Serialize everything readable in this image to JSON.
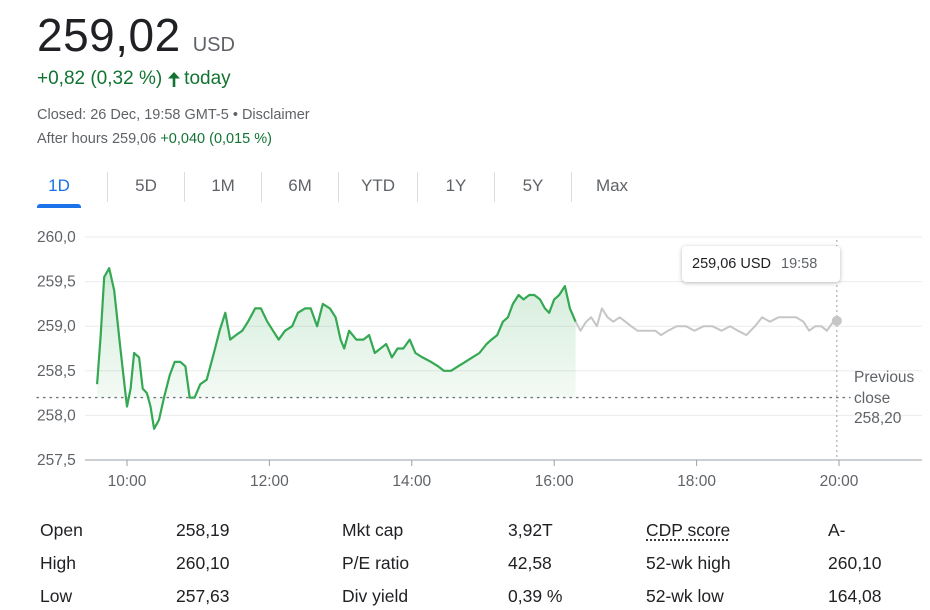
{
  "quote": {
    "price": "259,02",
    "currency": "USD",
    "change": "+0,82 (0,32 %)",
    "change_period": "today",
    "closed_text": "Closed: 26 Dec, 19:58 GMT-5 • Disclaimer",
    "after_hours_label": "After hours 259,06",
    "after_hours_change": "+0,040 (0,015 %)",
    "up_color": "#137333"
  },
  "tabs": [
    {
      "label": "1D",
      "active": true
    },
    {
      "label": "5D"
    },
    {
      "label": "6M",
      "hidden_note": ""
    },
    {
      "label": "1M"
    }
  ],
  "range_tabs": [
    "1D",
    "5D",
    "1M",
    "6M",
    "YTD",
    "1Y",
    "5Y",
    "Max"
  ],
  "tooltip": {
    "price": "259,06 USD",
    "time": "19:58"
  },
  "previous_close": {
    "line1": "Previous",
    "line2": "close",
    "value": "258,20"
  },
  "chart_data": {
    "type": "line",
    "y_ticks": [
      "260,0",
      "259,5",
      "259,0",
      "258,5",
      "258,0",
      "257,5"
    ],
    "x_ticks": [
      "10:00",
      "12:00",
      "14:00",
      "16:00",
      "18:00",
      "20:00"
    ],
    "ylim": [
      257.5,
      260.0
    ],
    "xlim_hours": [
      9.5,
      20.0
    ],
    "previous_close": 258.2,
    "grid": true,
    "series": [
      {
        "session": "regular",
        "color": "#34a853",
        "points": [
          [
            9.58,
            258.35
          ],
          [
            9.63,
            258.9
          ],
          [
            9.68,
            259.55
          ],
          [
            9.75,
            259.65
          ],
          [
            9.82,
            259.4
          ],
          [
            9.9,
            258.8
          ],
          [
            9.97,
            258.3
          ],
          [
            10.0,
            258.1
          ],
          [
            10.05,
            258.3
          ],
          [
            10.1,
            258.7
          ],
          [
            10.17,
            258.65
          ],
          [
            10.22,
            258.3
          ],
          [
            10.28,
            258.25
          ],
          [
            10.33,
            258.1
          ],
          [
            10.38,
            257.85
          ],
          [
            10.45,
            257.95
          ],
          [
            10.52,
            258.2
          ],
          [
            10.6,
            258.45
          ],
          [
            10.67,
            258.6
          ],
          [
            10.75,
            258.6
          ],
          [
            10.82,
            258.55
          ],
          [
            10.88,
            258.2
          ],
          [
            10.95,
            258.2
          ],
          [
            11.03,
            258.35
          ],
          [
            11.12,
            258.4
          ],
          [
            11.22,
            258.7
          ],
          [
            11.3,
            258.95
          ],
          [
            11.38,
            259.15
          ],
          [
            11.45,
            258.85
          ],
          [
            11.53,
            258.9
          ],
          [
            11.62,
            258.95
          ],
          [
            11.7,
            259.05
          ],
          [
            11.8,
            259.2
          ],
          [
            11.88,
            259.2
          ],
          [
            11.97,
            259.05
          ],
          [
            12.05,
            258.95
          ],
          [
            12.13,
            258.85
          ],
          [
            12.22,
            258.95
          ],
          [
            12.32,
            259.0
          ],
          [
            12.4,
            259.15
          ],
          [
            12.5,
            259.2
          ],
          [
            12.58,
            259.2
          ],
          [
            12.67,
            259.0
          ],
          [
            12.75,
            259.25
          ],
          [
            12.85,
            259.2
          ],
          [
            12.93,
            259.1
          ],
          [
            13.0,
            258.85
          ],
          [
            13.05,
            258.75
          ],
          [
            13.12,
            258.95
          ],
          [
            13.22,
            258.85
          ],
          [
            13.32,
            258.85
          ],
          [
            13.4,
            258.9
          ],
          [
            13.48,
            258.7
          ],
          [
            13.56,
            258.75
          ],
          [
            13.64,
            258.8
          ],
          [
            13.72,
            258.65
          ],
          [
            13.8,
            258.75
          ],
          [
            13.88,
            258.75
          ],
          [
            13.97,
            258.85
          ],
          [
            14.05,
            258.7
          ],
          [
            14.15,
            258.65
          ],
          [
            14.27,
            258.6
          ],
          [
            14.37,
            258.55
          ],
          [
            14.45,
            258.5
          ],
          [
            14.55,
            258.5
          ],
          [
            14.65,
            258.55
          ],
          [
            14.75,
            258.6
          ],
          [
            14.85,
            258.65
          ],
          [
            14.95,
            258.7
          ],
          [
            15.05,
            258.8
          ],
          [
            15.12,
            258.85
          ],
          [
            15.2,
            258.9
          ],
          [
            15.28,
            259.05
          ],
          [
            15.35,
            259.1
          ],
          [
            15.42,
            259.25
          ],
          [
            15.5,
            259.35
          ],
          [
            15.57,
            259.3
          ],
          [
            15.65,
            259.35
          ],
          [
            15.72,
            259.35
          ],
          [
            15.8,
            259.3
          ],
          [
            15.87,
            259.2
          ],
          [
            15.93,
            259.15
          ],
          [
            16.0,
            259.3
          ],
          [
            16.07,
            259.35
          ],
          [
            16.15,
            259.45
          ],
          [
            16.22,
            259.2
          ],
          [
            16.3,
            259.05
          ]
        ]
      },
      {
        "session": "after_hours",
        "color": "#c4c7c5",
        "points": [
          [
            16.3,
            259.05
          ],
          [
            16.37,
            258.95
          ],
          [
            16.45,
            259.05
          ],
          [
            16.52,
            259.1
          ],
          [
            16.6,
            259.0
          ],
          [
            16.67,
            259.2
          ],
          [
            16.75,
            259.1
          ],
          [
            16.83,
            259.05
          ],
          [
            16.92,
            259.1
          ],
          [
            17.0,
            259.05
          ],
          [
            17.08,
            259.0
          ],
          [
            17.17,
            258.95
          ],
          [
            17.3,
            258.95
          ],
          [
            17.42,
            258.95
          ],
          [
            17.5,
            258.9
          ],
          [
            17.6,
            258.95
          ],
          [
            17.72,
            259.0
          ],
          [
            17.85,
            259.0
          ],
          [
            17.97,
            258.95
          ],
          [
            18.1,
            259.0
          ],
          [
            18.22,
            259.0
          ],
          [
            18.35,
            258.95
          ],
          [
            18.47,
            259.0
          ],
          [
            18.58,
            258.95
          ],
          [
            18.7,
            258.9
          ],
          [
            18.82,
            259.0
          ],
          [
            18.92,
            259.1
          ],
          [
            19.03,
            259.05
          ],
          [
            19.15,
            259.1
          ],
          [
            19.27,
            259.1
          ],
          [
            19.4,
            259.1
          ],
          [
            19.5,
            259.05
          ],
          [
            19.58,
            258.95
          ],
          [
            19.67,
            259.0
          ],
          [
            19.75,
            259.0
          ],
          [
            19.83,
            258.95
          ],
          [
            19.92,
            259.05
          ],
          [
            19.97,
            259.06
          ]
        ]
      }
    ]
  },
  "stats": [
    [
      "Open",
      "258,19",
      "Mkt cap",
      "3,92T",
      "CDP score",
      "A-"
    ],
    [
      "High",
      "260,10",
      "P/E ratio",
      "42,58",
      "52-wk high",
      "260,10"
    ],
    [
      "Low",
      "257,63",
      "Div yield",
      "0,39 %",
      "52-wk low",
      "164,08"
    ]
  ]
}
